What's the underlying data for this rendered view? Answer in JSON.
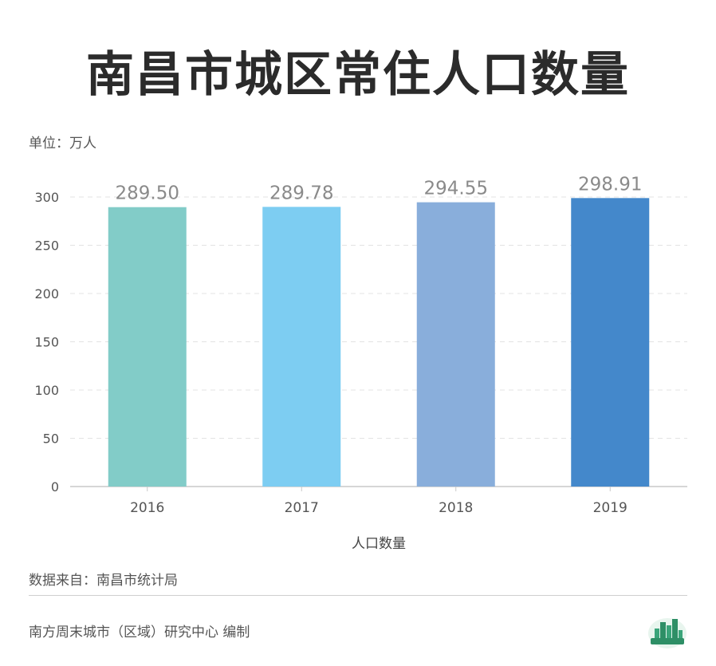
{
  "title": "南昌市城区常住人口数量",
  "unit_label": "单位：万人",
  "source": "数据来自：南昌市统计局",
  "credit": "南方周末城市（区域）研究中心 编制",
  "logo_icon": "city-skyline-logo-icon",
  "chart_data": {
    "type": "bar",
    "categories": [
      "2016",
      "2017",
      "2018",
      "2019"
    ],
    "values": [
      289.5,
      289.78,
      294.55,
      298.91
    ],
    "data_labels": [
      "289.50",
      "289.78",
      "294.55",
      "298.91"
    ],
    "colors": [
      "#82ccc8",
      "#7dcdf2",
      "#89aedb",
      "#4488cb"
    ],
    "yticks": [
      "0",
      "50",
      "100",
      "150",
      "200",
      "250",
      "300"
    ],
    "ylim": [
      0,
      300
    ],
    "xlabel": "人口数量",
    "ylabel": "",
    "grid": true
  }
}
